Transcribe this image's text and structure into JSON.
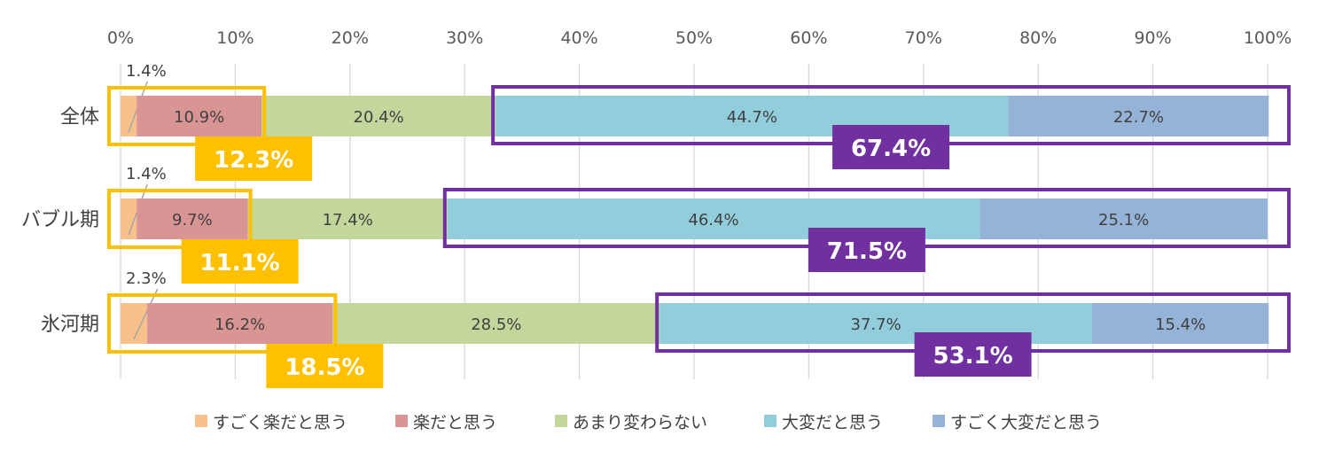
{
  "chart_data": {
    "type": "bar",
    "orientation": "horizontal",
    "stacked": "percent",
    "title": "",
    "xlabel": "",
    "ylabel": "",
    "xlim": [
      0,
      100
    ],
    "x_ticks": [
      "0%",
      "10%",
      "20%",
      "30%",
      "40%",
      "50%",
      "60%",
      "70%",
      "80%",
      "90%",
      "100%"
    ],
    "grid": true,
    "legend_position": "bottom",
    "categories": [
      "全体",
      "バブル期",
      "氷河期"
    ],
    "series": [
      {
        "name": "すごく楽だと思う",
        "color": "#f8c08a",
        "values": [
          1.4,
          1.4,
          2.3
        ],
        "labels": [
          "1.4%",
          "1.4%",
          "2.3%"
        ]
      },
      {
        "name": "楽だと思う",
        "color": "#d99594",
        "values": [
          10.9,
          9.7,
          16.2
        ],
        "labels": [
          "10.9%",
          "9.7%",
          "16.2%"
        ]
      },
      {
        "name": "あまり変わらない",
        "color": "#c3d69b",
        "values": [
          20.4,
          17.4,
          28.5
        ],
        "labels": [
          "20.4%",
          "17.4%",
          "28.5%"
        ]
      },
      {
        "name": "大変だと思う",
        "color": "#92cddc",
        "values": [
          44.7,
          46.4,
          37.7
        ],
        "labels": [
          "44.7%",
          "46.4%",
          "37.7%"
        ]
      },
      {
        "name": "すごく大変だと思う",
        "color": "#95b3d7",
        "values": [
          22.7,
          25.1,
          15.4
        ],
        "labels": [
          "22.7%",
          "25.1%",
          "15.4%"
        ]
      }
    ],
    "annotations": {
      "easy_totals": {
        "color": "#ffc000",
        "values": [
          12.3,
          11.1,
          18.5
        ],
        "labels": [
          "12.3%",
          "11.1%",
          "18.5%"
        ]
      },
      "hard_totals": {
        "color": "#7030a0",
        "values": [
          67.4,
          71.5,
          53.1
        ],
        "labels": [
          "67.4%",
          "71.5%",
          "53.1%"
        ]
      }
    }
  }
}
